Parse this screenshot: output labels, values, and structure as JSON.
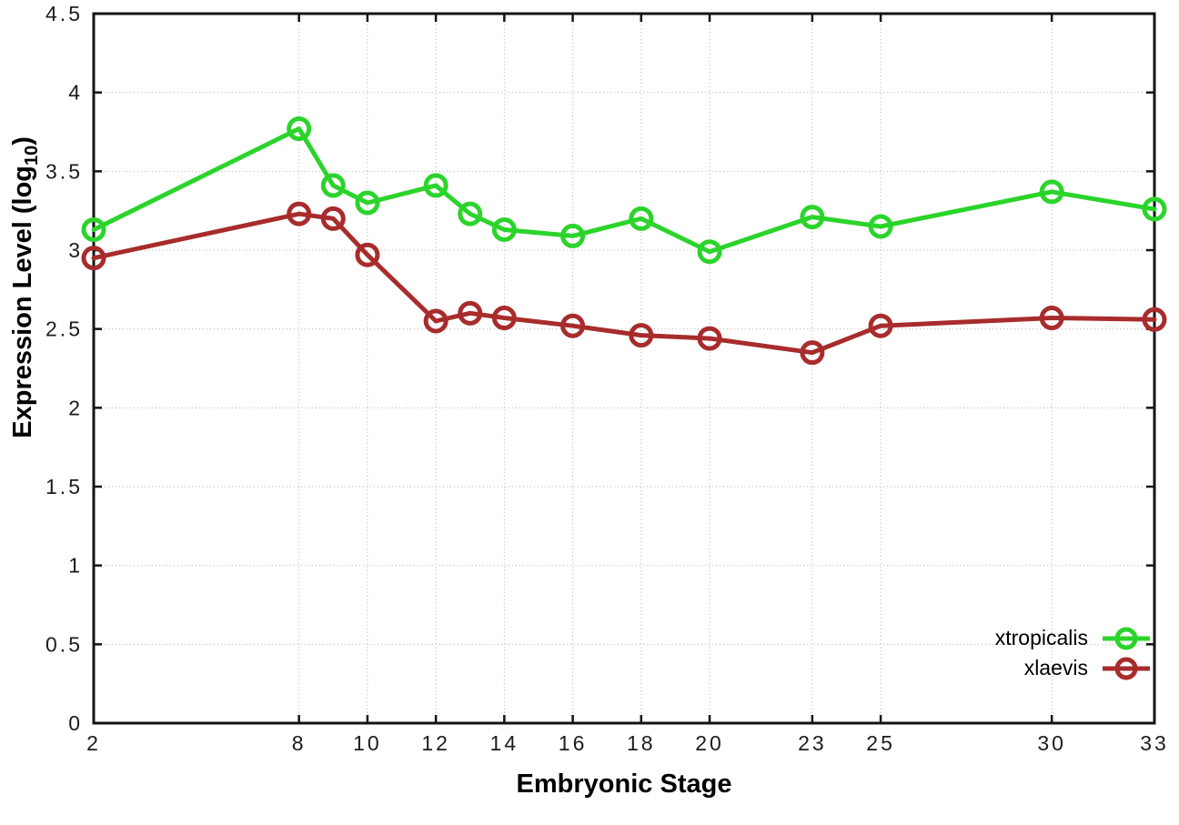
{
  "figure": {
    "background": "#ffffff",
    "axis_color": "#141414",
    "grid_color": "#b5b5b5",
    "xlabel": "Embryonic Stage",
    "ylabel_pre": "Expression Level (log",
    "ylabel_sub": "10",
    "ylabel_post": ")"
  },
  "chart_data": {
    "type": "line",
    "title": "",
    "xlabel": "Embryonic Stage",
    "ylabel": "Expression Level (log10)",
    "x": [
      2,
      8,
      9,
      10,
      12,
      13,
      14,
      16,
      18,
      20,
      23,
      25,
      30,
      33
    ],
    "series": [
      {
        "name": "xtropicalis",
        "color": "#2bd42b",
        "values": [
          3.13,
          3.77,
          3.41,
          3.3,
          3.41,
          3.23,
          3.13,
          3.09,
          3.2,
          2.99,
          3.21,
          3.15,
          3.37,
          3.26
        ]
      },
      {
        "name": "xlaevis",
        "color": "#a82c2c",
        "values": [
          2.95,
          3.23,
          3.2,
          2.97,
          2.55,
          2.6,
          2.57,
          2.52,
          2.46,
          2.44,
          2.35,
          2.52,
          2.57,
          2.56
        ]
      }
    ],
    "xlim": [
      2,
      33
    ],
    "ylim": [
      0,
      4.5
    ],
    "xticks": {
      "values": [
        2,
        8,
        10,
        12,
        14,
        16,
        18,
        20,
        23,
        25,
        30,
        33
      ],
      "labels": [
        "2",
        "8",
        "10",
        "12",
        "14",
        "16",
        "18",
        "20",
        "23",
        "25",
        "30",
        "33"
      ]
    },
    "yticks": {
      "values": [
        0,
        0.5,
        1,
        1.5,
        2,
        2.5,
        3,
        3.5,
        4,
        4.5
      ],
      "labels": [
        "0",
        "0.5",
        "1",
        "1.5",
        "2",
        "2.5",
        "3",
        "3.5",
        "4",
        "4.5"
      ]
    },
    "grid": true,
    "legend_position": "bottom-right",
    "marker": "open-circle"
  }
}
